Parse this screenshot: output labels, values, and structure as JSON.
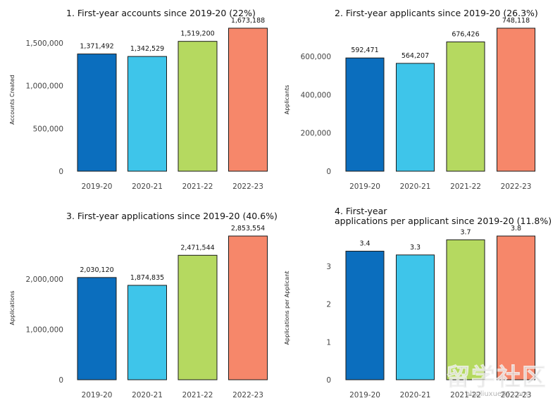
{
  "colors": {
    "bars": [
      "#0b6ebe",
      "#3ec5ea",
      "#b5d960",
      "#f6876a"
    ],
    "edge": "#1a1a1a"
  },
  "watermark": {
    "mark": "留学社区",
    "url": "bbs.liuxue86.com"
  },
  "chart_data": [
    {
      "type": "bar",
      "title": [
        "1. First-year accounts since 2019-20 (22%)"
      ],
      "xlabel": "",
      "ylabel": "Accounts Created",
      "categories": [
        "2019-20",
        "2020-21",
        "2021-22",
        "2022-23"
      ],
      "values": [
        1371492,
        1342529,
        1519200,
        1673188
      ],
      "value_labels": [
        "1,371,492",
        "1,342,529",
        "1,519,200",
        "1,673,188"
      ],
      "ylim": [
        0,
        1673188
      ],
      "yticks": [
        0,
        500000,
        1000000,
        1500000
      ],
      "ytick_labels": [
        "0",
        "500,000",
        "1,000,000",
        "1,500,000"
      ],
      "grid": false
    },
    {
      "type": "bar",
      "title": [
        "2. First-year applicants since 2019-20 (26.3%)"
      ],
      "xlabel": "",
      "ylabel": "Applicants",
      "categories": [
        "2019-20",
        "2020-21",
        "2021-22",
        "2022-23"
      ],
      "values": [
        592471,
        564207,
        676426,
        748118
      ],
      "value_labels": [
        "592,471",
        "564,207",
        "676,426",
        "748,118"
      ],
      "ylim": [
        0,
        748118
      ],
      "yticks": [
        0,
        200000,
        400000,
        600000
      ],
      "ytick_labels": [
        "0",
        "200,000",
        "400,000",
        "600,000"
      ],
      "grid": false
    },
    {
      "type": "bar",
      "title": [
        "3. First-year applications since 2019-20 (40.6%)"
      ],
      "xlabel": "",
      "ylabel": "Applications",
      "categories": [
        "2019-20",
        "2020-21",
        "2021-22",
        "2022-23"
      ],
      "values": [
        2030120,
        1874835,
        2471544,
        2853554
      ],
      "value_labels": [
        "2,030,120",
        "1,874,835",
        "2,471,544",
        "2,853,554"
      ],
      "ylim": [
        0,
        2853554
      ],
      "yticks": [
        0,
        1000000,
        2000000
      ],
      "ytick_labels": [
        "0",
        "1,000,000",
        "2,000,000"
      ],
      "grid": false
    },
    {
      "type": "bar",
      "title": [
        "4. First-year",
        "applications per applicant since 2019-20 (11.8%)"
      ],
      "xlabel": "",
      "ylabel": "Applications per Applicant",
      "categories": [
        "2019-20",
        "2020-21",
        "2021-22",
        "2022-23"
      ],
      "values": [
        3.4,
        3.3,
        3.7,
        3.8
      ],
      "value_labels": [
        "3.4",
        "3.3",
        "3.7",
        "3.8"
      ],
      "ylim": [
        0,
        3.8
      ],
      "yticks": [
        0,
        1,
        2,
        3
      ],
      "ytick_labels": [
        "0",
        "1",
        "2",
        "3"
      ],
      "grid": false
    }
  ]
}
